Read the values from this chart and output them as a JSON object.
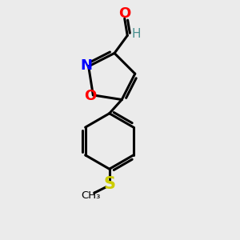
{
  "background_color": "#ebebeb",
  "atom_colors": {
    "O": "#ff0000",
    "N": "#0000ff",
    "S": "#cccc00",
    "C": "#000000",
    "H": "#4a9090"
  },
  "bond_color": "#000000",
  "bond_width": 2.2,
  "font_size_atoms": 13,
  "font_size_H": 11,
  "figsize": [
    3.0,
    3.0
  ],
  "dpi": 100,
  "xlim": [
    0,
    10
  ],
  "ylim": [
    0,
    10
  ]
}
